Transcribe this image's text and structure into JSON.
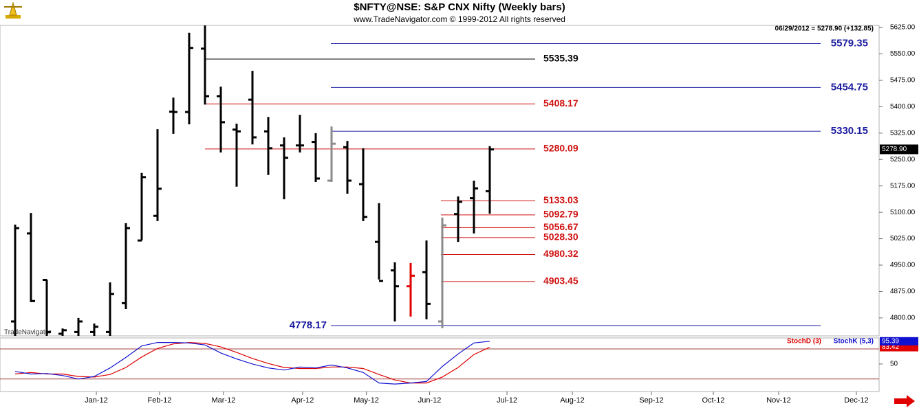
{
  "header": {
    "title": "$NFTY@NSE:  S&P CNX Nifty  (Weekly bars)",
    "subtitle": "www.TradeNavigator.com © 1999-2012 All rights reserved",
    "status": "06/29/2012 = 5278.90 (+132.85)",
    "watermark": "TradeNavigator"
  },
  "chart_data": [
    {
      "type": "ohlc",
      "open": [
        4790,
        5040,
        4908,
        4755,
        4760,
        4760,
        4760,
        4842,
        5020,
        5090,
        5386,
        5385,
        5565,
        5430,
        5335,
        5420,
        5330,
        5290,
        5290,
        5300,
        5190,
        5285,
        5180,
        5016,
        4935,
        4890,
        4930,
        4790,
        5095,
        5140,
        5160
      ],
      "high": [
        5065,
        5098,
        4909,
        4770,
        4800,
        4784,
        4901,
        5069,
        5212,
        5336,
        5426,
        5610,
        5631,
        5457,
        5352,
        5502,
        5371,
        5313,
        5377,
        5325,
        5344,
        5303,
        5282,
        5126,
        4958,
        4956,
        5020,
        5085,
        5145,
        5190,
        5288
      ],
      "low": [
        4740,
        4845,
        4740,
        4740,
        4740,
        4740,
        4740,
        4825,
        5020,
        5075,
        5323,
        5350,
        5406,
        5270,
        5173,
        5293,
        5206,
        5137,
        5270,
        5186,
        5186,
        5153,
        5075,
        4909,
        4790,
        4804,
        4796,
        4771,
        5016,
        5040,
        5096
      ],
      "close": [
        5055,
        4848,
        4760,
        4765,
        4790,
        4775,
        4868,
        5055,
        5200,
        5167,
        5385,
        5567,
        5430,
        5356,
        5330,
        5313,
        5282,
        5255,
        5290,
        5196,
        5295,
        5190,
        5087,
        4905,
        4890,
        4920,
        4840,
        5063,
        5130,
        5168,
        5278.9
      ],
      "colors": [
        "#000000",
        "#000000",
        "#000000",
        "#000000",
        "#000000",
        "#000000",
        "#000000",
        "#000000",
        "#000000",
        "#000000",
        "#000000",
        "#000000",
        "#000000",
        "#000000",
        "#000000",
        "#000000",
        "#000000",
        "#000000",
        "#000000",
        "#000000",
        "#8a8a8a",
        "#000000",
        "#000000",
        "#000000",
        "#000000",
        "#e00000",
        "#000000",
        "#8a8a8a",
        "#000000",
        "#000000",
        "#000000"
      ],
      "last_price_label": "5278.90",
      "ylim": [
        4749,
        5631
      ],
      "yticks": [
        {
          "value": 4800,
          "label": "4800.00"
        },
        {
          "value": 4875,
          "label": "4875.00"
        },
        {
          "value": 4950,
          "label": "4950.00"
        },
        {
          "value": 5025,
          "label": "5025.00"
        },
        {
          "value": 5100,
          "label": "5100.00"
        },
        {
          "value": 5175,
          "label": "5175.00"
        },
        {
          "value": 5250,
          "label": "5250.00"
        },
        {
          "value": 5325,
          "label": "5325.00"
        },
        {
          "value": 5400,
          "label": "5400.00"
        },
        {
          "value": 5475,
          "label": "5475.00"
        },
        {
          "value": 5550,
          "label": "5550.00"
        },
        {
          "value": 5625,
          "label": "5625.00"
        }
      ],
      "levels": [
        {
          "value": 5579.35,
          "label": "5579.35",
          "color": "#1a1aa0"
        },
        {
          "value": 5535.39,
          "label": "5535.39",
          "color": "#000000"
        },
        {
          "value": 5454.75,
          "label": "5454.75",
          "color": "#1a1aa0"
        },
        {
          "value": 5408.17,
          "label": "5408.17",
          "color": "#d01010"
        },
        {
          "value": 5330.15,
          "label": "5330.15",
          "color": "#1a1aa0"
        },
        {
          "value": 5280.09,
          "label": "5280.09",
          "color": "#d01010"
        },
        {
          "value": 5133.03,
          "label": "5133.03",
          "color": "#d01010"
        },
        {
          "value": 5092.79,
          "label": "5092.79",
          "color": "#d01010"
        },
        {
          "value": 5056.67,
          "label": "5056.67",
          "color": "#d01010"
        },
        {
          "value": 5028.3,
          "label": "5028.30",
          "color": "#d01010"
        },
        {
          "value": 4980.32,
          "label": "4980.32",
          "color": "#d01010"
        },
        {
          "value": 4903.45,
          "label": "4903.45",
          "color": "#d01010"
        },
        {
          "value": 4778.17,
          "label": "4778.17",
          "color": "#1a1aa0"
        }
      ]
    },
    {
      "type": "line",
      "series": [
        {
          "name": "StochD (3)",
          "color": "#e00000",
          "values": [
            30,
            33,
            30,
            30,
            25,
            24,
            29,
            43,
            64,
            81,
            90,
            93,
            91,
            84,
            73,
            61,
            51,
            43,
            41,
            41,
            44,
            44,
            41,
            29,
            18,
            12,
            12,
            24,
            43,
            69,
            83.42
          ]
        },
        {
          "name": "StochK (5,3)",
          "color": "#1010d0",
          "values": [
            35,
            30,
            31,
            27,
            20,
            25,
            42,
            63,
            86,
            93,
            93,
            92,
            88,
            72,
            60,
            50,
            42,
            38,
            44,
            42,
            48,
            42,
            33,
            12,
            10,
            12,
            15,
            45,
            70,
            92,
            95.39
          ]
        }
      ],
      "ylim": [
        -5,
        102
      ],
      "yticks": [
        50
      ],
      "hlines": [
        20,
        80
      ]
    }
  ],
  "xlim": [
    -0.9565,
    54.6087
  ],
  "xticks": [
    {
      "value": 5.13,
      "label": "Jan-12"
    },
    {
      "value": 9.13,
      "label": "Feb-12"
    },
    {
      "value": 13.17,
      "label": "Mar-12"
    },
    {
      "value": 18.17,
      "label": "Apr-12"
    },
    {
      "value": 22.2,
      "label": "May-12"
    },
    {
      "value": 26.2,
      "label": "Jun-12"
    },
    {
      "value": 31.09,
      "label": "Jul-12"
    },
    {
      "value": 35.22,
      "label": "Aug-12"
    },
    {
      "value": 40.22,
      "label": "Sep-12"
    },
    {
      "value": 44.13,
      "label": "Oct-12"
    },
    {
      "value": 48.26,
      "label": "Nov-12"
    },
    {
      "value": 53.17,
      "label": "Dec-12"
    }
  ]
}
